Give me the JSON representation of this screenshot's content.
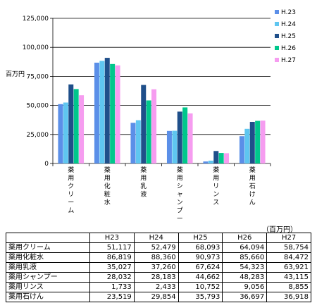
{
  "chart_data": {
    "type": "bar",
    "ylabel": "百万円",
    "ylim": [
      0,
      125000
    ],
    "yticks": [
      0,
      25000,
      50000,
      75000,
      100000,
      125000
    ],
    "ytick_labels": [
      "0",
      "25,000",
      "50,000",
      "75,000",
      "100,000",
      "125,000"
    ],
    "grid": true,
    "legend": "top-right",
    "categories": [
      "薬用クリーム",
      "薬用化粧水",
      "薬用乳液",
      "薬用シャンプー",
      "薬用リンス",
      "薬用石けん"
    ],
    "series": [
      {
        "name": "H.23",
        "color": "#5b8fe8",
        "values": [
          51117,
          86819,
          35027,
          28032,
          1733,
          23519
        ]
      },
      {
        "name": "H.24",
        "color": "#5fc6f0",
        "values": [
          52479,
          88360,
          37260,
          28183,
          2433,
          29854
        ]
      },
      {
        "name": "H.25",
        "color": "#1f4f8a",
        "values": [
          68093,
          90973,
          67624,
          44662,
          10752,
          35793
        ]
      },
      {
        "name": "H.26",
        "color": "#00c78c",
        "values": [
          64094,
          85660,
          54323,
          48283,
          9056,
          36697
        ]
      },
      {
        "name": "H.27",
        "color": "#f69cf0",
        "values": [
          58754,
          84472,
          63921,
          43115,
          8855,
          36918
        ]
      }
    ]
  },
  "table": {
    "unit": "（百万円）",
    "headers": [
      "H23",
      "H24",
      "H25",
      "H26",
      "H27"
    ],
    "rows": [
      {
        "name": "薬用クリーム",
        "values": [
          "51,117",
          "52,479",
          "68,093",
          "64,094",
          "58,754"
        ]
      },
      {
        "name": "薬用化粧水",
        "values": [
          "86,819",
          "88,360",
          "90,973",
          "85,660",
          "84,472"
        ]
      },
      {
        "name": "薬用乳液",
        "values": [
          "35,027",
          "37,260",
          "67,624",
          "54,323",
          "63,921"
        ]
      },
      {
        "name": "薬用シャンプー",
        "values": [
          "28,032",
          "28,183",
          "44,662",
          "48,283",
          "43,115"
        ]
      },
      {
        "name": "薬用リンス",
        "values": [
          "1,733",
          "2,433",
          "10,752",
          "9,056",
          "8,855"
        ]
      },
      {
        "name": "薬用石けん",
        "values": [
          "23,519",
          "29,854",
          "35,793",
          "36,697",
          "36,918"
        ]
      }
    ]
  }
}
